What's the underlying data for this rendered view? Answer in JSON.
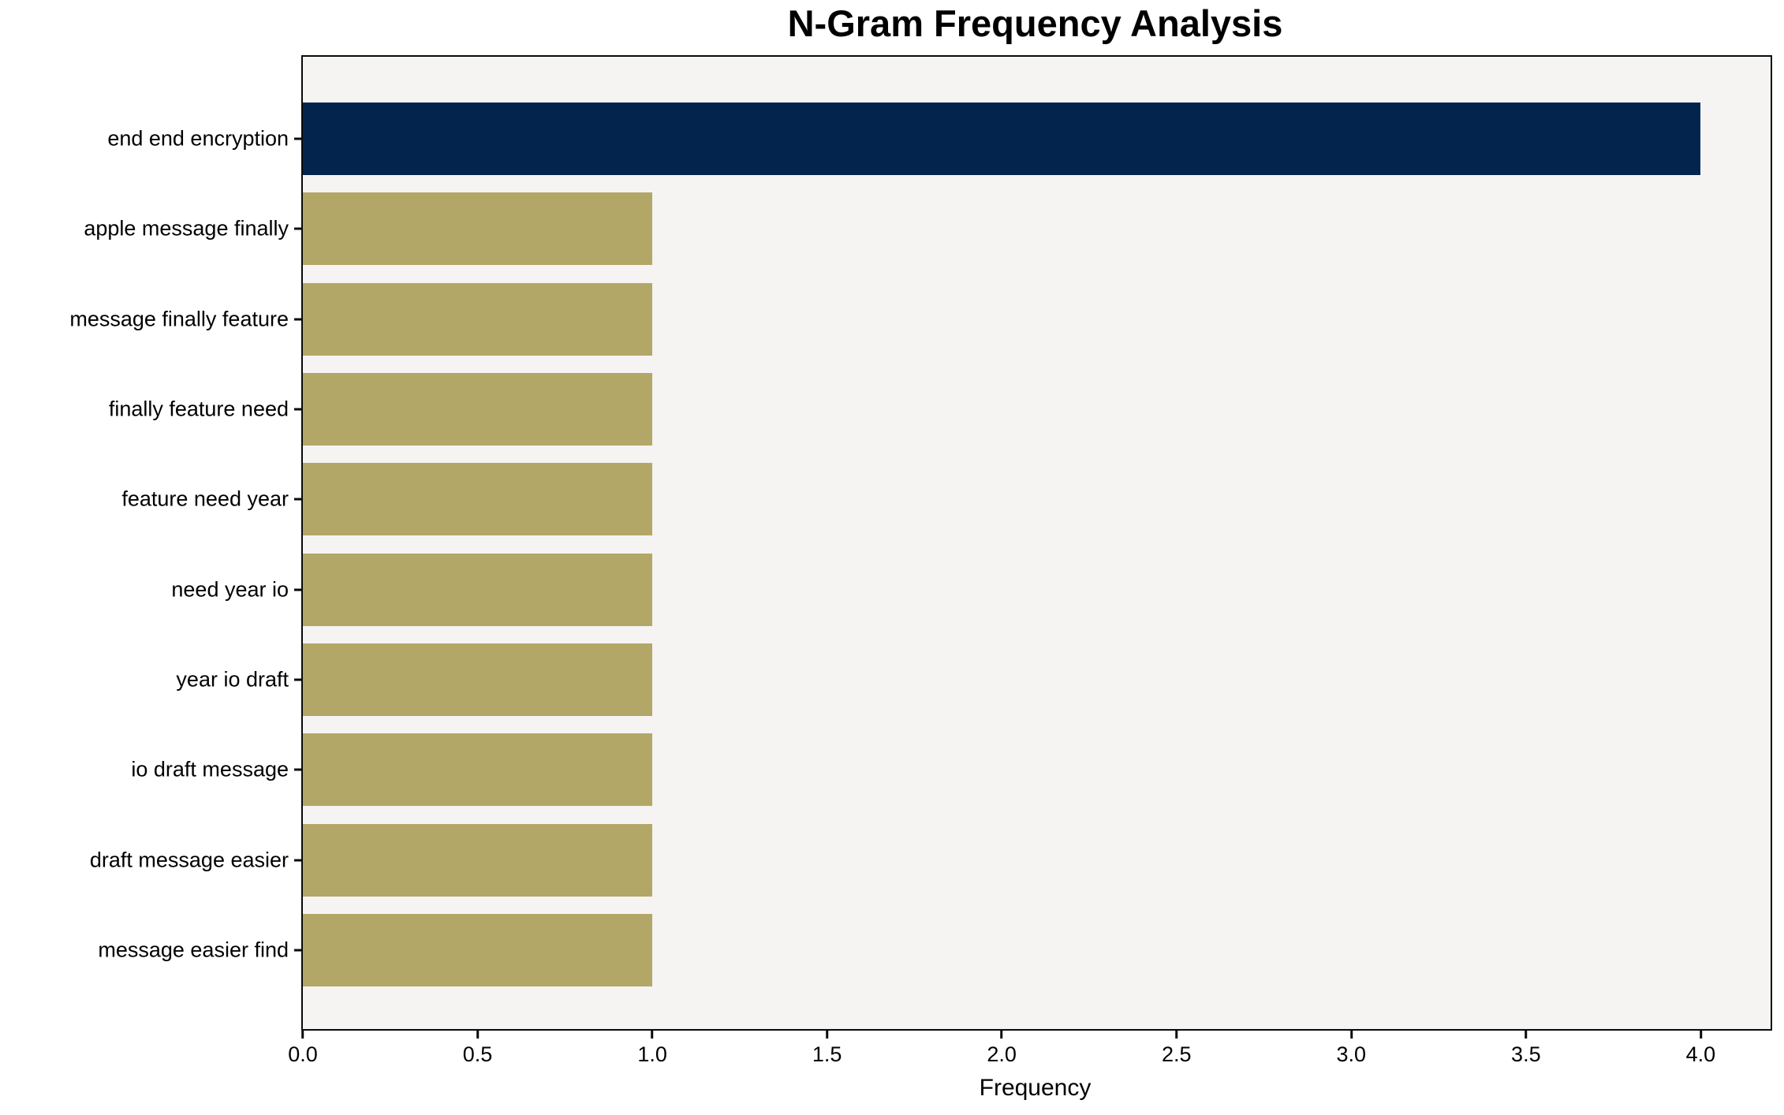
{
  "chart_data": {
    "type": "bar",
    "orientation": "horizontal",
    "title": "N-Gram Frequency Analysis",
    "xlabel": "Frequency",
    "ylabel": "",
    "categories": [
      "end end encryption",
      "apple message finally",
      "message finally feature",
      "finally feature need",
      "feature need year",
      "need year io",
      "year io draft",
      "io draft message",
      "draft message easier",
      "message easier find"
    ],
    "values": [
      4,
      1,
      1,
      1,
      1,
      1,
      1,
      1,
      1,
      1
    ],
    "xlim": [
      0,
      4.2
    ],
    "xticks": [
      "0.0",
      "0.5",
      "1.0",
      "1.5",
      "2.0",
      "2.5",
      "3.0",
      "3.5",
      "4.0"
    ],
    "xtick_values": [
      0,
      0.5,
      1,
      1.5,
      2,
      2.5,
      3,
      3.5,
      4
    ],
    "grid": false,
    "highlight_index": 0,
    "colors": {
      "highlight_bar": "#03254d",
      "default_bar": "#b3a767",
      "plot_background": "#f5f4f3",
      "figure_background": "#ffffff",
      "axis": "#0a0a0a",
      "text": "#000000"
    }
  }
}
